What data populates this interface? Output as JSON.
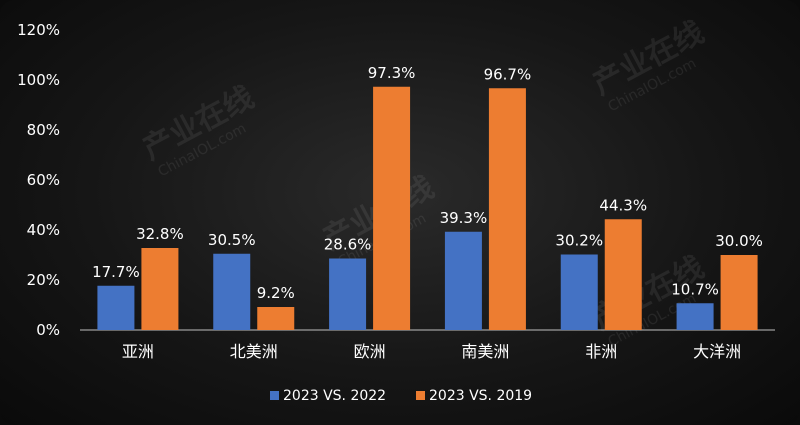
{
  "watermark": {
    "brand_cn": "产业在线",
    "brand_en": "ChinaIOL.com"
  },
  "chart_data": {
    "type": "bar",
    "categories": [
      "亚洲",
      "北美洲",
      "欧洲",
      "南美洲",
      "非洲",
      "大洋洲"
    ],
    "series": [
      {
        "name": "2023 VS. 2022",
        "color": "#4472c4",
        "values": [
          17.7,
          30.5,
          28.6,
          39.3,
          30.2,
          10.7
        ],
        "labels": [
          "17.7%",
          "30.5%",
          "28.6%",
          "39.3%",
          "30.2%",
          "10.7%"
        ]
      },
      {
        "name": "2023 VS. 2019",
        "color": "#ed7d31",
        "values": [
          32.8,
          9.2,
          97.3,
          96.7,
          44.3,
          30.0
        ],
        "labels": [
          "32.8%",
          "9.2%",
          "97.3%",
          "96.7%",
          "44.3%",
          "30.0%"
        ]
      }
    ],
    "ylim": [
      0,
      120
    ],
    "yticks": [
      0,
      20,
      40,
      60,
      80,
      100,
      120
    ],
    "ytick_labels": [
      "0%",
      "20%",
      "40%",
      "60%",
      "80%",
      "100%",
      "120%"
    ],
    "legend_position": "bottom-center",
    "grid": false
  }
}
